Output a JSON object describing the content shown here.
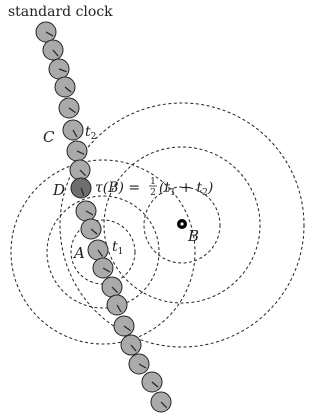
{
  "diagram": {
    "caption": "standard clock",
    "labels": {
      "C": "C",
      "D": "D",
      "A": "A",
      "B": "B",
      "t2": "t",
      "t2_sub": "2",
      "t1": "t",
      "t1_sub": "1",
      "tau_lhs": "τ(B) = ",
      "half_num": "1",
      "half_den": "2",
      "paren_open": "(t",
      "sub1": "1",
      "plus": " + t",
      "sub2": "2",
      "paren_close": ")"
    },
    "colors": {
      "clock_fill": "#aaaaaa",
      "clock_fill_dark": "#6e6e6e",
      "stroke": "#222222",
      "point": "#000000"
    }
  }
}
